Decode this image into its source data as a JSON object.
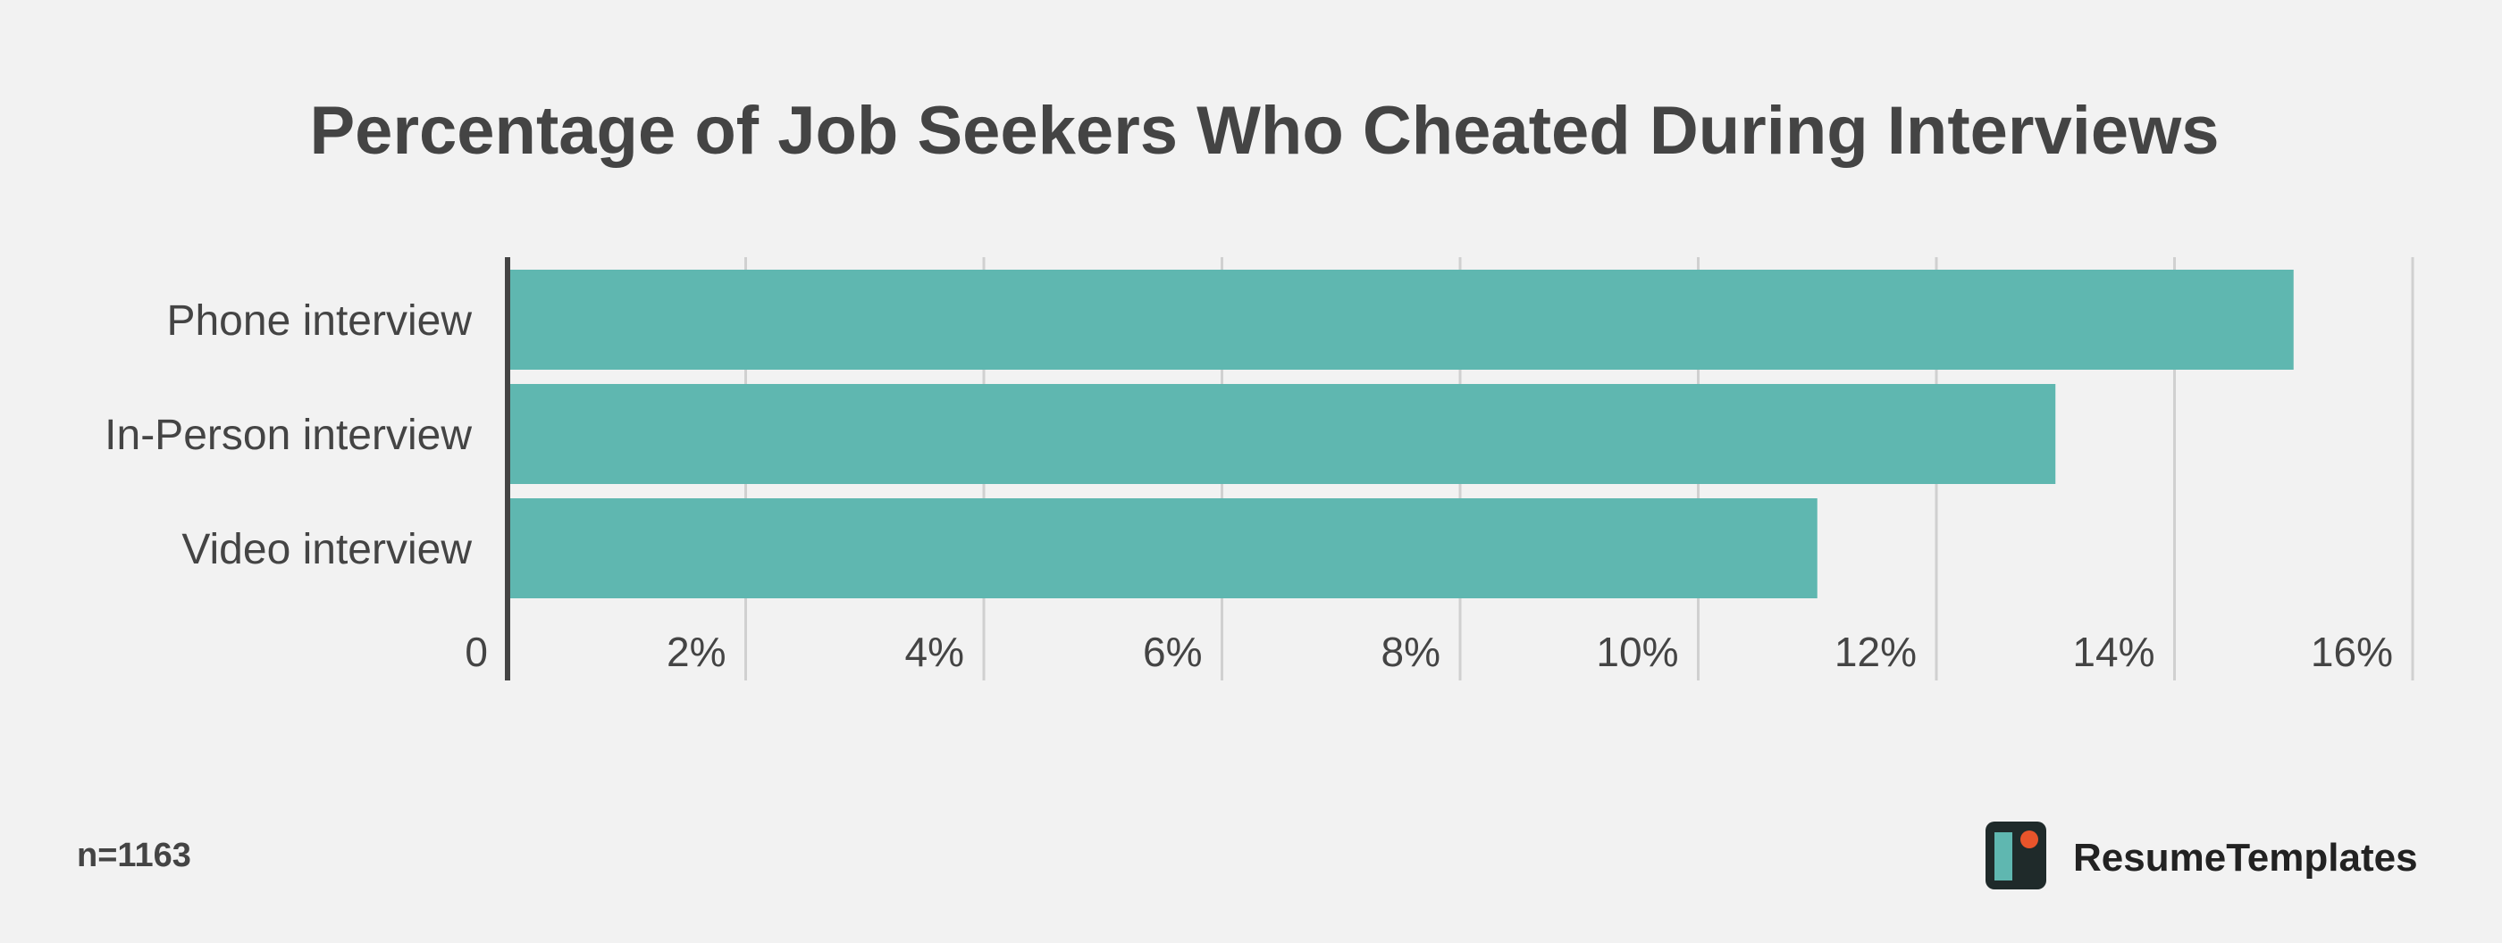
{
  "chart_data": {
    "type": "bar",
    "orientation": "horizontal",
    "title": "Percentage of Job Seekers Who Cheated During Interviews",
    "categories": [
      "Phone interview",
      "In-Person interview",
      "Video interview"
    ],
    "values": [
      15,
      13,
      11
    ],
    "xlim": [
      0,
      16
    ],
    "xticks": [
      0,
      2,
      4,
      6,
      8,
      10,
      12,
      14,
      16
    ],
    "xtick_labels": [
      "0",
      "2%",
      "4%",
      "6%",
      "8%",
      "10%",
      "12%",
      "14%",
      "16%"
    ],
    "xlabel": "",
    "ylabel": "",
    "grid": true,
    "legend": "none"
  },
  "footnote": "n=1163",
  "brand": {
    "name": "ResumeTemplates"
  },
  "colors": {
    "background": "#f2f2f2",
    "bar": "#5fb7b0",
    "grid": "#d0d0d0",
    "axis": "#444444",
    "text": "#444444",
    "logo_dark": "#1f2a2a",
    "logo_teal": "#5fb7b0",
    "logo_accent": "#e8542b"
  }
}
